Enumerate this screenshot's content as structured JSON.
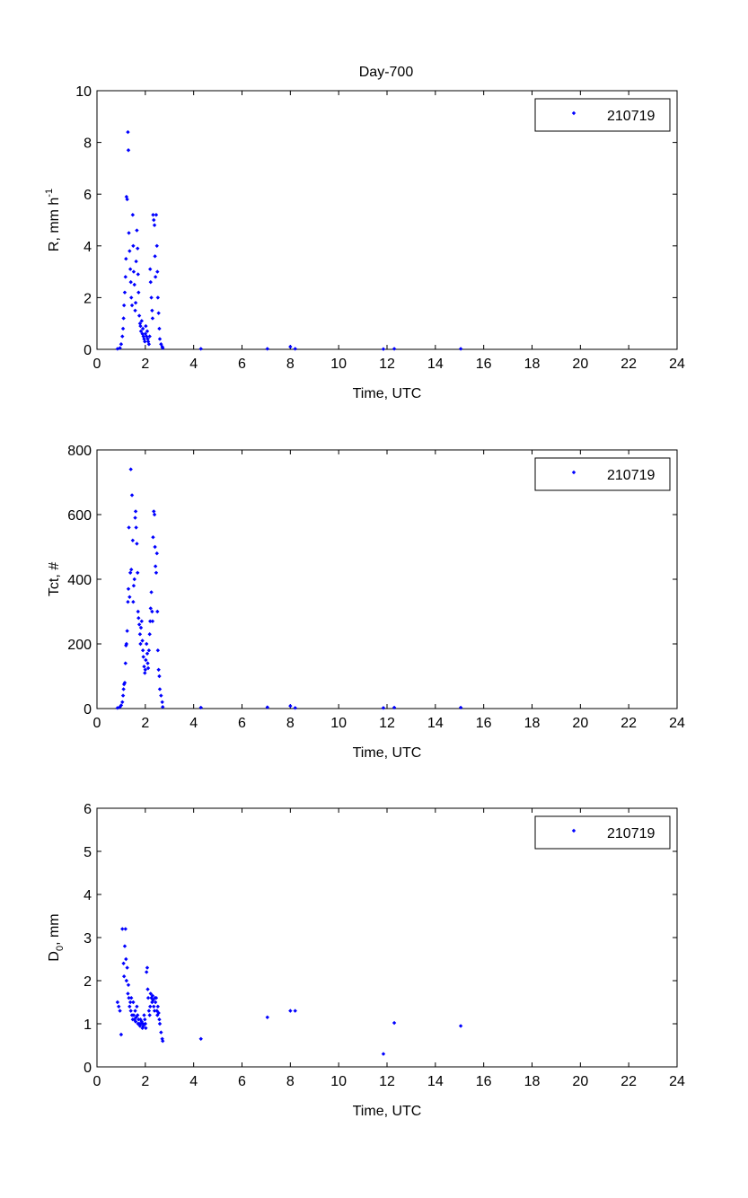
{
  "figure_title": "Day-700",
  "chart_data": [
    {
      "type": "scatter",
      "title": "Day-700",
      "xlabel": "Time, UTC",
      "ylabel": "R, mm h",
      "ylabel_sup": "-1",
      "xlim": [
        0,
        24
      ],
      "ylim": [
        0,
        10
      ],
      "xticks": [
        "0",
        "2",
        "4",
        "6",
        "8",
        "10",
        "12",
        "14",
        "16",
        "18",
        "20",
        "22",
        "24"
      ],
      "yticks": [
        "0",
        "2",
        "4",
        "6",
        "8",
        "10"
      ],
      "grid": false,
      "legend_position": "top-right",
      "marker_color": "#0000ff",
      "series": [
        {
          "name": "210719",
          "points": [
            [
              0.85,
              0.02
            ],
            [
              0.95,
              0.05
            ],
            [
              1.0,
              0.2
            ],
            [
              1.05,
              0.5
            ],
            [
              1.08,
              0.8
            ],
            [
              1.1,
              1.2
            ],
            [
              1.12,
              1.7
            ],
            [
              1.15,
              2.2
            ],
            [
              1.18,
              2.8
            ],
            [
              1.2,
              3.5
            ],
            [
              1.22,
              5.9
            ],
            [
              1.25,
              5.8
            ],
            [
              1.28,
              8.4
            ],
            [
              1.3,
              7.7
            ],
            [
              1.32,
              4.5
            ],
            [
              1.35,
              3.8
            ],
            [
              1.38,
              3.1
            ],
            [
              1.4,
              2.6
            ],
            [
              1.42,
              2.0
            ],
            [
              1.45,
              1.7
            ],
            [
              1.48,
              5.2
            ],
            [
              1.5,
              4.0
            ],
            [
              1.52,
              3.0
            ],
            [
              1.55,
              2.5
            ],
            [
              1.58,
              1.5
            ],
            [
              1.6,
              1.8
            ],
            [
              1.62,
              3.4
            ],
            [
              1.65,
              4.6
            ],
            [
              1.68,
              3.9
            ],
            [
              1.7,
              2.9
            ],
            [
              1.72,
              2.2
            ],
            [
              1.75,
              1.3
            ],
            [
              1.78,
              1.0
            ],
            [
              1.8,
              0.9
            ],
            [
              1.82,
              0.7
            ],
            [
              1.85,
              1.1
            ],
            [
              1.88,
              0.6
            ],
            [
              1.9,
              0.8
            ],
            [
              1.92,
              0.5
            ],
            [
              1.95,
              0.4
            ],
            [
              1.98,
              0.3
            ],
            [
              2.0,
              0.6
            ],
            [
              2.02,
              0.9
            ],
            [
              2.05,
              0.5
            ],
            [
              2.08,
              0.7
            ],
            [
              2.1,
              0.4
            ],
            [
              2.12,
              0.3
            ],
            [
              2.15,
              0.2
            ],
            [
              2.18,
              0.5
            ],
            [
              2.2,
              3.1
            ],
            [
              2.22,
              2.6
            ],
            [
              2.25,
              2.0
            ],
            [
              2.28,
              1.5
            ],
            [
              2.3,
              1.2
            ],
            [
              2.32,
              5.2
            ],
            [
              2.35,
              5.0
            ],
            [
              2.38,
              4.8
            ],
            [
              2.4,
              3.6
            ],
            [
              2.42,
              2.8
            ],
            [
              2.45,
              5.2
            ],
            [
              2.48,
              4.0
            ],
            [
              2.5,
              3.0
            ],
            [
              2.52,
              2.0
            ],
            [
              2.55,
              1.4
            ],
            [
              2.58,
              0.8
            ],
            [
              2.6,
              0.4
            ],
            [
              2.65,
              0.2
            ],
            [
              2.7,
              0.1
            ],
            [
              2.72,
              0.05
            ],
            [
              4.3,
              0.02
            ],
            [
              7.05,
              0.02
            ],
            [
              8.0,
              0.1
            ],
            [
              8.2,
              0.02
            ],
            [
              11.85,
              0.01
            ],
            [
              12.3,
              0.02
            ],
            [
              15.05,
              0.02
            ]
          ]
        }
      ]
    },
    {
      "type": "scatter",
      "title": "",
      "xlabel": "Time, UTC",
      "ylabel": "Tct, #",
      "xlim": [
        0,
        24
      ],
      "ylim": [
        0,
        800
      ],
      "xticks": [
        "0",
        "2",
        "4",
        "6",
        "8",
        "10",
        "12",
        "14",
        "16",
        "18",
        "20",
        "22",
        "24"
      ],
      "yticks": [
        "0",
        "200",
        "400",
        "600",
        "800"
      ],
      "grid": false,
      "legend_position": "top-right",
      "marker_color": "#0000ff",
      "series": [
        {
          "name": "210719",
          "points": [
            [
              0.85,
              2
            ],
            [
              0.95,
              5
            ],
            [
              1.0,
              10
            ],
            [
              1.05,
              20
            ],
            [
              1.08,
              40
            ],
            [
              1.1,
              60
            ],
            [
              1.12,
              75
            ],
            [
              1.15,
              80
            ],
            [
              1.18,
              140
            ],
            [
              1.2,
              195
            ],
            [
              1.22,
              200
            ],
            [
              1.25,
              240
            ],
            [
              1.28,
              330
            ],
            [
              1.3,
              370
            ],
            [
              1.32,
              560
            ],
            [
              1.35,
              345
            ],
            [
              1.38,
              420
            ],
            [
              1.4,
              740
            ],
            [
              1.42,
              430
            ],
            [
              1.45,
              660
            ],
            [
              1.48,
              520
            ],
            [
              1.5,
              330
            ],
            [
              1.52,
              380
            ],
            [
              1.55,
              400
            ],
            [
              1.58,
              590
            ],
            [
              1.6,
              610
            ],
            [
              1.62,
              560
            ],
            [
              1.65,
              510
            ],
            [
              1.68,
              420
            ],
            [
              1.7,
              300
            ],
            [
              1.72,
              280
            ],
            [
              1.75,
              260
            ],
            [
              1.78,
              230
            ],
            [
              1.8,
              200
            ],
            [
              1.82,
              250
            ],
            [
              1.85,
              270
            ],
            [
              1.88,
              210
            ],
            [
              1.9,
              180
            ],
            [
              1.92,
              160
            ],
            [
              1.95,
              130
            ],
            [
              1.98,
              110
            ],
            [
              2.0,
              120
            ],
            [
              2.02,
              150
            ],
            [
              2.05,
              200
            ],
            [
              2.08,
              170
            ],
            [
              2.1,
              140
            ],
            [
              2.12,
              125
            ],
            [
              2.15,
              180
            ],
            [
              2.18,
              230
            ],
            [
              2.2,
              270
            ],
            [
              2.22,
              310
            ],
            [
              2.25,
              360
            ],
            [
              2.28,
              300
            ],
            [
              2.3,
              270
            ],
            [
              2.32,
              530
            ],
            [
              2.35,
              610
            ],
            [
              2.38,
              600
            ],
            [
              2.4,
              500
            ],
            [
              2.42,
              440
            ],
            [
              2.45,
              420
            ],
            [
              2.48,
              480
            ],
            [
              2.5,
              300
            ],
            [
              2.52,
              180
            ],
            [
              2.55,
              120
            ],
            [
              2.58,
              100
            ],
            [
              2.6,
              60
            ],
            [
              2.65,
              40
            ],
            [
              2.7,
              20
            ],
            [
              2.72,
              5
            ],
            [
              4.3,
              3
            ],
            [
              7.05,
              4
            ],
            [
              8.0,
              8
            ],
            [
              8.2,
              2
            ],
            [
              11.85,
              2
            ],
            [
              12.3,
              3
            ],
            [
              15.05,
              3
            ]
          ]
        }
      ]
    },
    {
      "type": "scatter",
      "title": "",
      "xlabel": "Time, UTC",
      "ylabel": "D",
      "ylabel_sub": "0",
      "ylabel_suffix": ", mm",
      "xlim": [
        0,
        24
      ],
      "ylim": [
        0,
        6
      ],
      "xticks": [
        "0",
        "2",
        "4",
        "6",
        "8",
        "10",
        "12",
        "14",
        "16",
        "18",
        "20",
        "22",
        "24"
      ],
      "yticks": [
        "0",
        "1",
        "2",
        "3",
        "4",
        "5",
        "6"
      ],
      "grid": false,
      "legend_position": "top-right",
      "marker_color": "#0000ff",
      "series": [
        {
          "name": "210719",
          "points": [
            [
              0.85,
              1.5
            ],
            [
              0.9,
              1.4
            ],
            [
              0.95,
              1.3
            ],
            [
              1.0,
              0.75
            ],
            [
              1.05,
              3.2
            ],
            [
              1.1,
              2.4
            ],
            [
              1.12,
              2.1
            ],
            [
              1.15,
              2.8
            ],
            [
              1.18,
              3.2
            ],
            [
              1.2,
              2.5
            ],
            [
              1.22,
              2.0
            ],
            [
              1.25,
              2.3
            ],
            [
              1.28,
              1.7
            ],
            [
              1.3,
              1.9
            ],
            [
              1.32,
              1.6
            ],
            [
              1.35,
              1.4
            ],
            [
              1.38,
              1.5
            ],
            [
              1.4,
              1.3
            ],
            [
              1.42,
              1.6
            ],
            [
              1.45,
              1.2
            ],
            [
              1.48,
              1.1
            ],
            [
              1.5,
              1.5
            ],
            [
              1.52,
              1.2
            ],
            [
              1.55,
              1.1
            ],
            [
              1.58,
              1.3
            ],
            [
              1.6,
              1.05
            ],
            [
              1.62,
              1.15
            ],
            [
              1.65,
              1.4
            ],
            [
              1.68,
              1.2
            ],
            [
              1.7,
              1.0
            ],
            [
              1.72,
              1.1
            ],
            [
              1.75,
              1.0
            ],
            [
              1.78,
              0.95
            ],
            [
              1.8,
              1.1
            ],
            [
              1.82,
              1.0
            ],
            [
              1.85,
              1.05
            ],
            [
              1.88,
              0.9
            ],
            [
              1.9,
              1.0
            ],
            [
              1.92,
              0.95
            ],
            [
              1.95,
              1.2
            ],
            [
              1.98,
              1.1
            ],
            [
              2.0,
              1.0
            ],
            [
              2.02,
              0.9
            ],
            [
              2.05,
              2.2
            ],
            [
              2.08,
              2.3
            ],
            [
              2.1,
              1.8
            ],
            [
              2.12,
              1.6
            ],
            [
              2.15,
              1.3
            ],
            [
              2.18,
              1.2
            ],
            [
              2.2,
              1.4
            ],
            [
              2.22,
              1.7
            ],
            [
              2.25,
              1.6
            ],
            [
              2.28,
              1.5
            ],
            [
              2.3,
              1.65
            ],
            [
              2.32,
              1.55
            ],
            [
              2.35,
              1.4
            ],
            [
              2.38,
              1.3
            ],
            [
              2.4,
              1.6
            ],
            [
              2.42,
              1.5
            ],
            [
              2.45,
              1.6
            ],
            [
              2.48,
              1.3
            ],
            [
              2.5,
              1.2
            ],
            [
              2.52,
              1.4
            ],
            [
              2.55,
              1.25
            ],
            [
              2.58,
              1.1
            ],
            [
              2.6,
              1.0
            ],
            [
              2.65,
              0.8
            ],
            [
              2.7,
              0.65
            ],
            [
              2.72,
              0.6
            ],
            [
              4.3,
              0.65
            ],
            [
              7.05,
              1.15
            ],
            [
              8.0,
              1.3
            ],
            [
              8.2,
              1.3
            ],
            [
              11.85,
              0.3
            ],
            [
              12.3,
              1.02
            ],
            [
              15.05,
              0.95
            ]
          ]
        }
      ]
    }
  ]
}
